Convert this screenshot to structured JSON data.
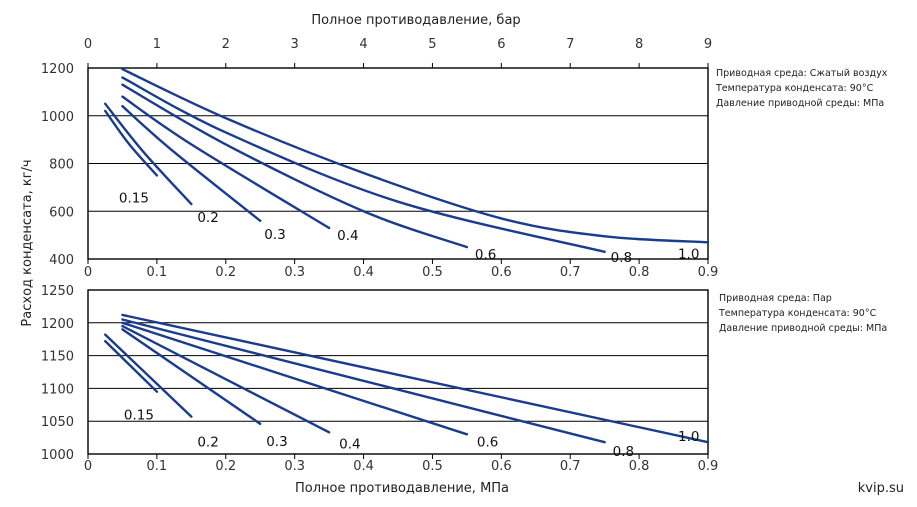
{
  "chart_data": {
    "title": "Полное противодавление, бар",
    "xlabel": "Полное противодавление, МПа",
    "ylabel": "Расход конденсата, кг/ч",
    "top_axis": {
      "label": "Полное противодавление, бар",
      "ticks": [
        "0",
        "1",
        "2",
        "3",
        "4",
        "5",
        "6",
        "7",
        "8",
        "9"
      ],
      "range": [
        0,
        9
      ]
    },
    "watermark": "kvip.su",
    "charts": [
      {
        "type": "line",
        "xlim": [
          0,
          0.9
        ],
        "ylim": [
          400,
          1200
        ],
        "x_ticks": [
          "0",
          "0.1",
          "0.2",
          "0.3",
          "0.4",
          "0.5",
          "0.6",
          "0.7",
          "0.8",
          "0.9"
        ],
        "y_ticks": [
          "400",
          "600",
          "800",
          "1000",
          "1200"
        ],
        "y_tick_values": [
          400,
          600,
          800,
          1000,
          1200
        ],
        "grid": "horizontal",
        "notes": [
          "Приводная среда: Сжатый воздух",
          "Температура конденсата: 90°C",
          "Давление приводной среды: МПа"
        ],
        "series": [
          {
            "name": "0.15",
            "x": [
              0.025,
              0.06,
              0.1
            ],
            "y": [
              1020,
              880,
              750
            ]
          },
          {
            "name": "0.2",
            "x": [
              0.025,
              0.08,
              0.15
            ],
            "y": [
              1050,
              850,
              630
            ]
          },
          {
            "name": "0.3",
            "x": [
              0.05,
              0.12,
              0.25
            ],
            "y": [
              1040,
              860,
              560
            ]
          },
          {
            "name": "0.4",
            "x": [
              0.05,
              0.15,
              0.35
            ],
            "y": [
              1080,
              880,
              530
            ]
          },
          {
            "name": "0.6",
            "x": [
              0.05,
              0.2,
              0.4,
              0.55
            ],
            "y": [
              1130,
              880,
              600,
              450
            ]
          },
          {
            "name": "0.8",
            "x": [
              0.05,
              0.2,
              0.45,
              0.75
            ],
            "y": [
              1160,
              930,
              640,
              430
            ]
          },
          {
            "name": "1.0",
            "x": [
              0.05,
              0.2,
              0.4,
              0.6,
              0.75,
              0.9
            ],
            "y": [
              1195,
              990,
              760,
              570,
              495,
              470
            ]
          }
        ]
      },
      {
        "type": "line",
        "xlim": [
          0,
          0.9
        ],
        "ylim": [
          1000,
          1250
        ],
        "x_ticks": [
          "0",
          "0.1",
          "0.2",
          "0.3",
          "0.4",
          "0.5",
          "0.6",
          "0.7",
          "0.8",
          "0.9"
        ],
        "y_ticks": [
          "1000",
          "1050",
          "1100",
          "1150",
          "1200",
          "1250"
        ],
        "y_tick_values": [
          1000,
          1050,
          1100,
          1150,
          1200,
          1250
        ],
        "grid": "horizontal",
        "notes": [
          "Приводная среда: Пар",
          "Температура конденсата: 90°C",
          "Давление приводной среды: МПа"
        ],
        "series": [
          {
            "name": "0.15",
            "x": [
              0.025,
              0.1
            ],
            "y": [
              1172,
              1095
            ]
          },
          {
            "name": "0.2",
            "x": [
              0.025,
              0.15
            ],
            "y": [
              1182,
              1057
            ]
          },
          {
            "name": "0.3",
            "x": [
              0.05,
              0.25
            ],
            "y": [
              1190,
              1046
            ]
          },
          {
            "name": "0.4",
            "x": [
              0.05,
              0.35
            ],
            "y": [
              1195,
              1033
            ]
          },
          {
            "name": "0.6",
            "x": [
              0.05,
              0.55
            ],
            "y": [
              1200,
              1030
            ]
          },
          {
            "name": "0.8",
            "x": [
              0.05,
              0.75
            ],
            "y": [
              1205,
              1018
            ]
          },
          {
            "name": "1.0",
            "x": [
              0.05,
              0.9
            ],
            "y": [
              1212,
              1018
            ]
          }
        ]
      }
    ]
  }
}
